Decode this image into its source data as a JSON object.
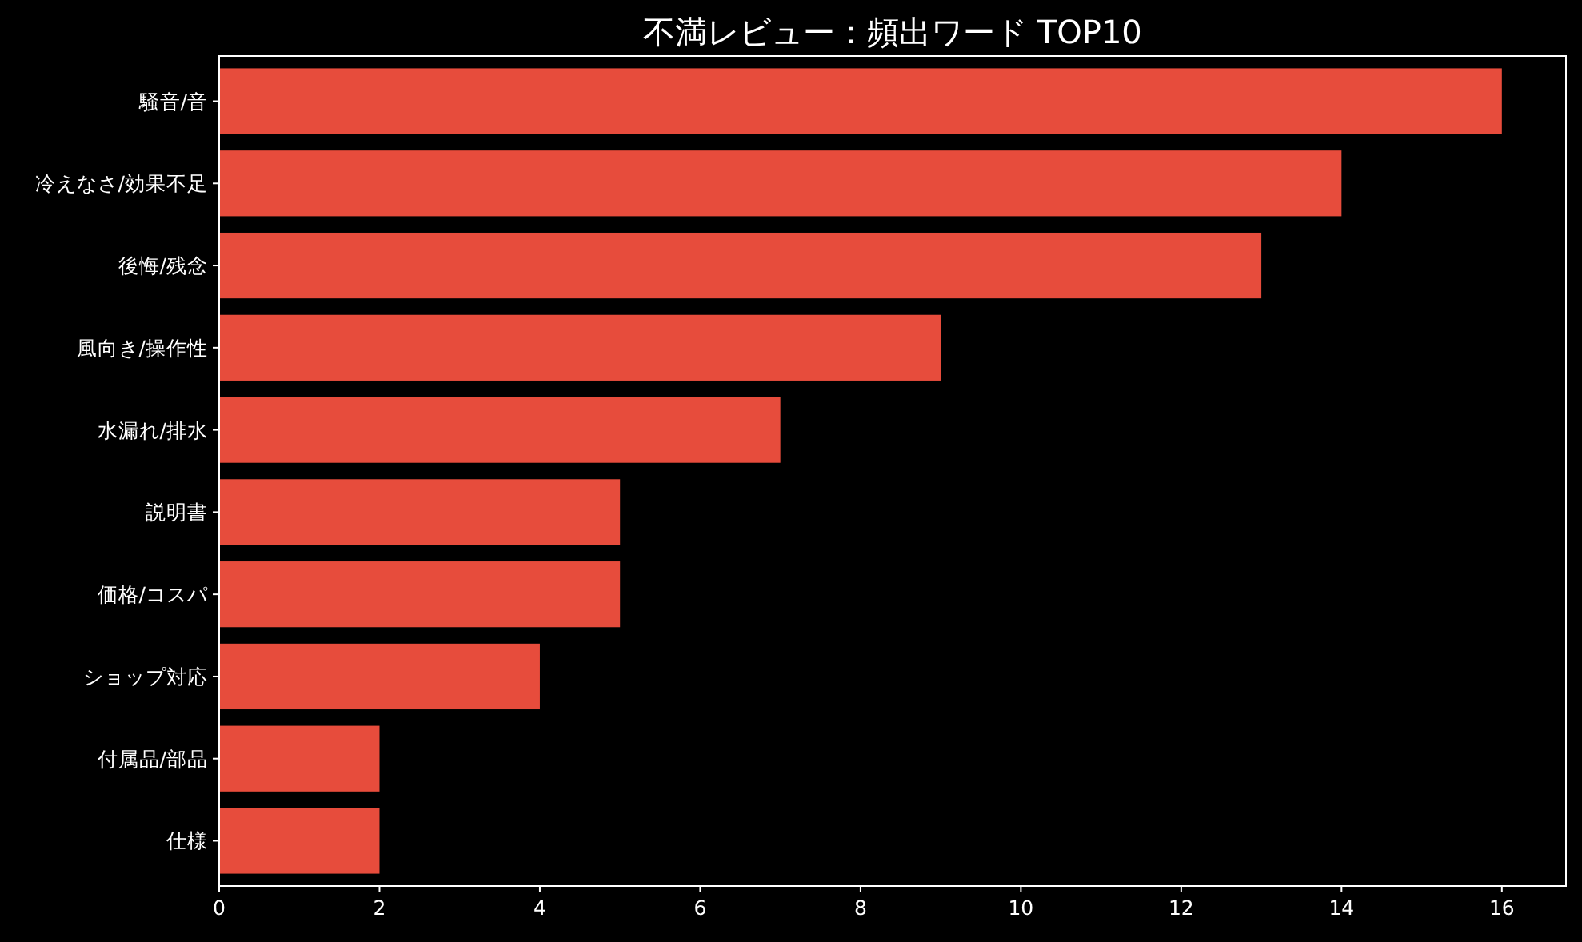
{
  "chart_data": {
    "type": "bar",
    "orientation": "horizontal",
    "title": "不満レビュー：頻出ワード TOP10",
    "categories": [
      "騒音/音",
      "冷えなさ/効果不足",
      "後悔/残念",
      "風向き/操作性",
      "水漏れ/排水",
      "説明書",
      "価格/コスパ",
      "ショップ対応",
      "付属品/部品",
      "仕様"
    ],
    "values": [
      16,
      14,
      13,
      9,
      7,
      5,
      5,
      4,
      2,
      2
    ],
    "color": "#e74c3c",
    "xlim": [
      0,
      16.8
    ],
    "xticks": [
      0,
      2,
      4,
      6,
      8,
      10,
      12,
      14,
      16
    ]
  }
}
